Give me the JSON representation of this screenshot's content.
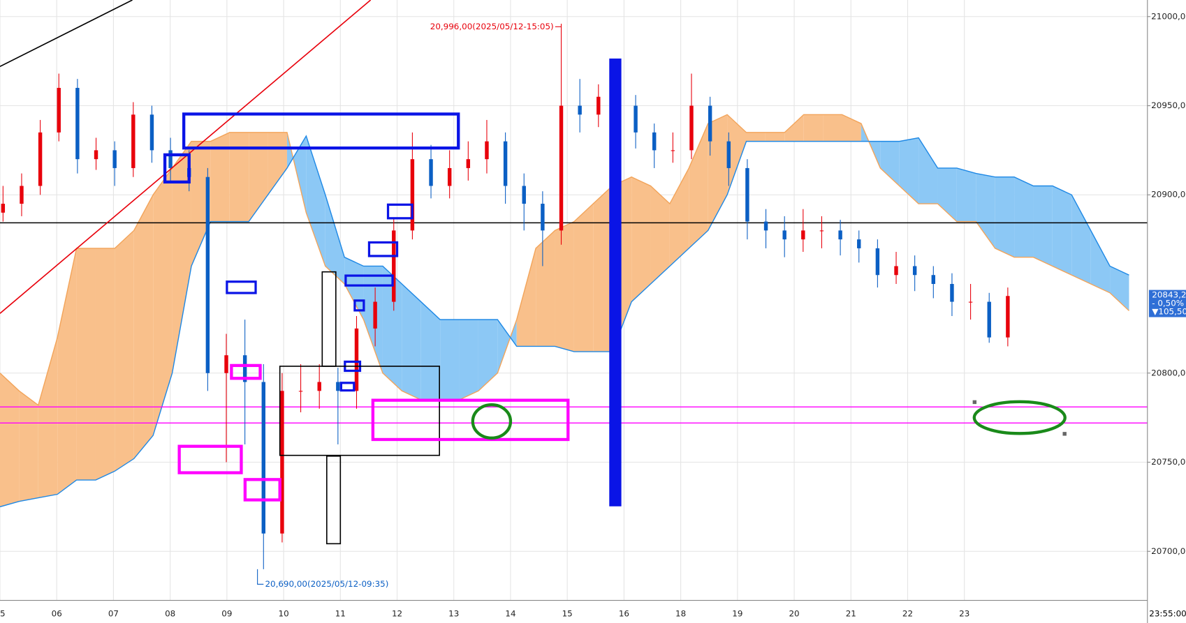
{
  "chart_data": {
    "type": "candlestick",
    "xticks": [
      "05",
      "06",
      "07",
      "08",
      "09",
      "10",
      "11",
      "12",
      "13",
      "14",
      "15",
      "16",
      "18",
      "19",
      "20",
      "21",
      "22",
      "23"
    ],
    "x_end_label": "23:55:00",
    "ylim": [
      20672.5,
      21009.3
    ],
    "yticks": [
      {
        "value": 20700,
        "label": "20700,00"
      },
      {
        "value": 20750,
        "label": "20750,00"
      },
      {
        "value": 20800,
        "label": "20800,00"
      },
      {
        "value": 20900,
        "label": "20900,00"
      },
      {
        "value": 20950,
        "label": "20950,00"
      },
      {
        "value": 21000,
        "label": "21000,00"
      }
    ],
    "grid": true,
    "up_color": "#e8000b",
    "down_color": "#0b5fc4",
    "candles": {
      "open": [
        20890,
        20895,
        20905,
        20935,
        20960,
        20920,
        20925,
        20915,
        20945,
        20925,
        20915,
        20910,
        20800,
        20810,
        20795,
        20710,
        20790,
        20790,
        20795,
        20790,
        20825,
        20840,
        20880,
        20920,
        20905,
        20915,
        20920,
        20930,
        20905,
        20895,
        20880,
        20950,
        20945,
        20955,
        20950,
        20935,
        20925,
        20925,
        20950,
        20930,
        20915,
        20885,
        20880,
        20875,
        20880,
        20880,
        20875,
        20870,
        20855,
        20860,
        20855,
        20850,
        20840,
        20840,
        20820
      ],
      "high": [
        20905,
        20912,
        20942,
        20968,
        20965,
        20932,
        20930,
        20952,
        20950,
        20932,
        20925,
        20915,
        20822,
        20830,
        20805,
        20800,
        20805,
        20805,
        20803,
        20832,
        20848,
        20887,
        20935,
        20928,
        20925,
        20930,
        20942,
        20935,
        20912,
        20902,
        20996,
        20965,
        20962,
        20962,
        20956,
        20940,
        20935,
        20968,
        20955,
        20935,
        20920,
        20892,
        20888,
        20892,
        20888,
        20886,
        20880,
        20875,
        20868,
        20866,
        20860,
        20856,
        20850,
        20845,
        20848
      ],
      "low": [
        20885,
        20888,
        20900,
        20930,
        20912,
        20914,
        20905,
        20910,
        20918,
        20908,
        20902,
        20790,
        20750,
        20760,
        20690,
        20705,
        20778,
        20780,
        20760,
        20780,
        20815,
        20835,
        20875,
        20898,
        20898,
        20908,
        20912,
        20895,
        20880,
        20860,
        20872,
        20935,
        20938,
        20940,
        20926,
        20915,
        20918,
        20920,
        20922,
        20905,
        20875,
        20870,
        20865,
        20868,
        20870,
        20866,
        20862,
        20848,
        20850,
        20846,
        20842,
        20832,
        20830,
        20817,
        20815
      ],
      "close": [
        20895,
        20905,
        20935,
        20960,
        20920,
        20925,
        20915,
        20945,
        20925,
        20915,
        20910,
        20800,
        20810,
        20795,
        20710,
        20790,
        20790,
        20795,
        20790,
        20825,
        20840,
        20880,
        20920,
        20905,
        20915,
        20920,
        20930,
        20905,
        20895,
        20880,
        20950,
        20945,
        20955,
        20950,
        20935,
        20925,
        20925,
        20950,
        20930,
        20915,
        20885,
        20880,
        20875,
        20880,
        20880,
        20875,
        20870,
        20855,
        20860,
        20855,
        20850,
        20840,
        20840,
        20820,
        20843.25
      ]
    },
    "cloud": {
      "span_a": [
        20800,
        20790,
        20782,
        20820,
        20870,
        20870,
        20870,
        20880,
        20900,
        20915,
        20930,
        20930,
        20935,
        20935,
        20935,
        20935,
        20890,
        20860,
        20850,
        20830,
        20800,
        20790,
        20785,
        20785,
        20785,
        20790,
        20800,
        20830,
        20870,
        20880,
        20885,
        20895,
        20905,
        20910,
        20905,
        20895,
        20915,
        20940,
        20945,
        20935,
        20935,
        20935,
        20945,
        20945,
        20945,
        20940,
        20915,
        20905,
        20895,
        20895,
        20885,
        20885,
        20870,
        20865,
        20865,
        20860,
        20855,
        20850,
        20845,
        20835
      ],
      "span_b": [
        20725,
        20728,
        20730,
        20732,
        20740,
        20740,
        20745,
        20752,
        20765,
        20800,
        20860,
        20885,
        20885,
        20885,
        20900,
        20915,
        20933,
        20900,
        20865,
        20860,
        20860,
        20850,
        20840,
        20830,
        20830,
        20830,
        20830,
        20815,
        20815,
        20815,
        20812,
        20812,
        20812,
        20840,
        20850,
        20860,
        20870,
        20880,
        20900,
        20930,
        20930,
        20930,
        20930,
        20930,
        20930,
        20930,
        20930,
        20930,
        20932,
        20915,
        20915,
        20912,
        20910,
        20910,
        20905,
        20905,
        20900,
        20880,
        20860,
        20855
      ],
      "color_a": "#f9c08b",
      "color_b": "#8cc8f5",
      "line_a": "#f2a45a",
      "line_b": "#1e88e5"
    },
    "levels": [
      {
        "value": 20884.3,
        "color": "#000000"
      },
      {
        "value": 20781,
        "color": "#ff00ff"
      },
      {
        "value": 20772,
        "color": "#ff00ff"
      }
    ],
    "high_annotation": "20,996,00(2025/05/12-15:05)",
    "low_annotation": "20,690,00(2025/05/12-09:35)",
    "last_price": {
      "value": 20843.25,
      "label": "20843,25"
    },
    "change_percent": {
      "value": -0.5,
      "label": "- 0,50%"
    },
    "change_points": {
      "value": -105.5,
      "label": "▼105,50"
    }
  }
}
